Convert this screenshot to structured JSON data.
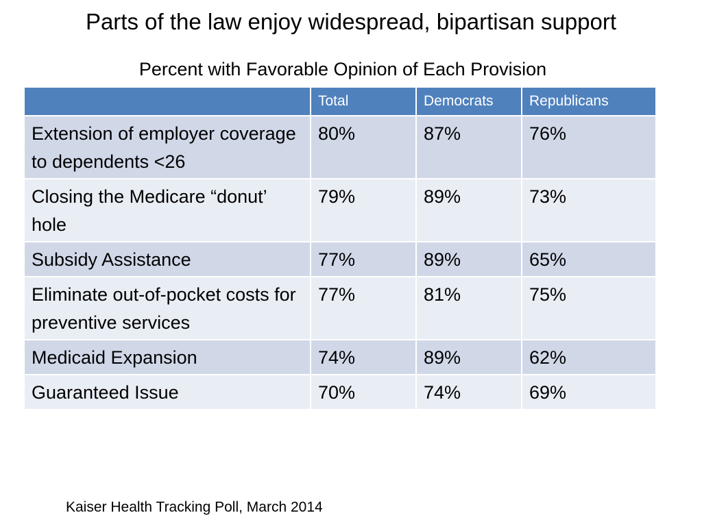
{
  "title": "Parts of the law enjoy widespread, bipartisan support",
  "subtitle": "Percent with Favorable Opinion of Each Provision",
  "footer": "Kaiser Health Tracking Poll, March 2014",
  "colors": {
    "header_bg": "#4f81bd",
    "row_odd_bg": "#d0d8e8",
    "row_even_bg": "#e9edf4"
  },
  "chart_data": {
    "type": "table",
    "title": "Percent with Favorable Opinion of Each Provision",
    "columns": [
      "",
      "Total",
      "Democrats",
      "Republicans"
    ],
    "rows": [
      {
        "label": "Extension of employer coverage to dependents <26",
        "values": [
          "80%",
          "87%",
          "76%"
        ]
      },
      {
        "label": "Closing the Medicare “donut’ hole",
        "values": [
          "79%",
          "89%",
          "73%"
        ]
      },
      {
        "label": "Subsidy Assistance",
        "values": [
          "77%",
          "89%",
          "65%"
        ]
      },
      {
        "label": "Eliminate out-of-pocket costs for preventive services",
        "values": [
          "77%",
          "81%",
          "75%"
        ]
      },
      {
        "label": "Medicaid Expansion",
        "values": [
          "74%",
          "89%",
          "62%"
        ]
      },
      {
        "label": "Guaranteed Issue",
        "values": [
          "70%",
          "74%",
          "69%"
        ]
      }
    ],
    "series": [
      {
        "name": "Total",
        "values": [
          80,
          79,
          77,
          77,
          74,
          70
        ]
      },
      {
        "name": "Democrats",
        "values": [
          87,
          89,
          89,
          81,
          89,
          74
        ]
      },
      {
        "name": "Republicans",
        "values": [
          76,
          73,
          65,
          75,
          62,
          69
        ]
      }
    ]
  }
}
